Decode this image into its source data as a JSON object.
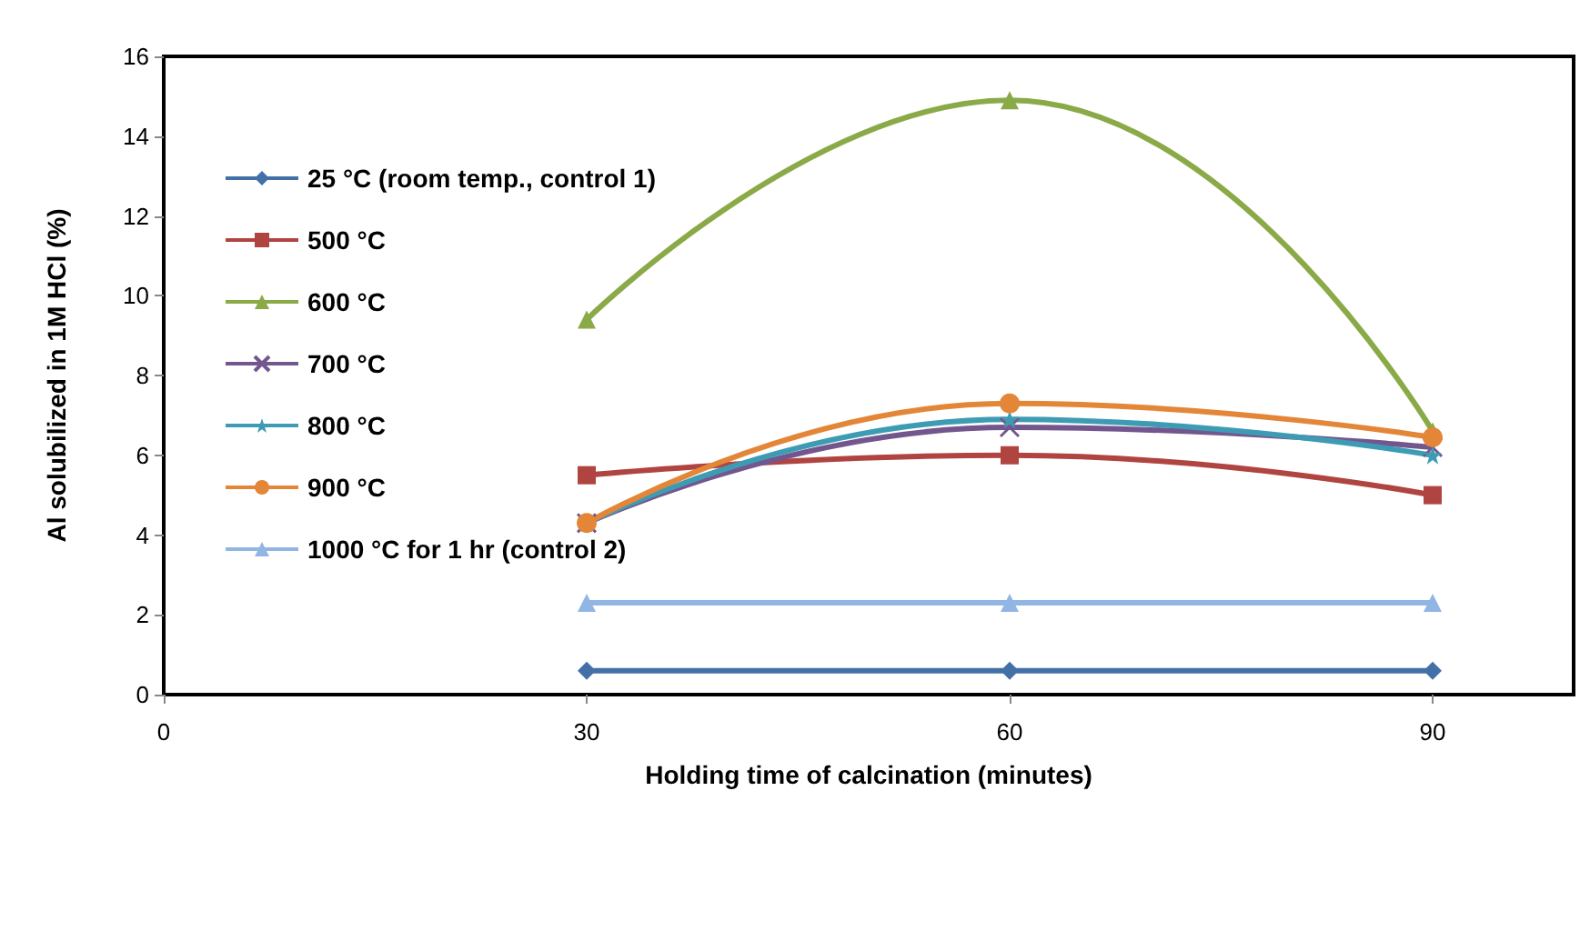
{
  "chart_data": {
    "type": "line",
    "xlabel": "Holding time of calcination (minutes)",
    "ylabel": "Al solubilized in 1M HCl (%)",
    "x": [
      30,
      60,
      90
    ],
    "xlim": [
      0,
      100
    ],
    "xticks": [
      0,
      30,
      60,
      90
    ],
    "ylim": [
      0,
      16
    ],
    "yticks": [
      0,
      2,
      4,
      6,
      8,
      10,
      12,
      14,
      16
    ],
    "grid": false,
    "legend": "left",
    "series": [
      {
        "name": "25 °C (room temp., control 1)",
        "color": "#4470a8",
        "marker": "diamond",
        "values": [
          0.6,
          0.6,
          0.6
        ]
      },
      {
        "name": "500 °C",
        "color": "#b04440",
        "marker": "square",
        "values": [
          5.5,
          6.0,
          5.0
        ]
      },
      {
        "name": "600 °C",
        "color": "#8aaa48",
        "marker": "triangle",
        "values": [
          9.4,
          14.9,
          6.6
        ]
      },
      {
        "name": "700 °C",
        "color": "#74568e",
        "marker": "cross",
        "values": [
          4.3,
          6.7,
          6.2
        ]
      },
      {
        "name": "800 °C",
        "color": "#3d9cb4",
        "marker": "star",
        "values": [
          4.3,
          6.9,
          6.0
        ]
      },
      {
        "name": "900 °C",
        "color": "#e48638",
        "marker": "circle",
        "values": [
          4.3,
          7.3,
          6.45
        ]
      },
      {
        "name": "1000 °C for 1 hr (control 2)",
        "color": "#92b6e4",
        "marker": "triangle",
        "values": [
          2.3,
          2.3,
          2.3
        ]
      }
    ]
  }
}
